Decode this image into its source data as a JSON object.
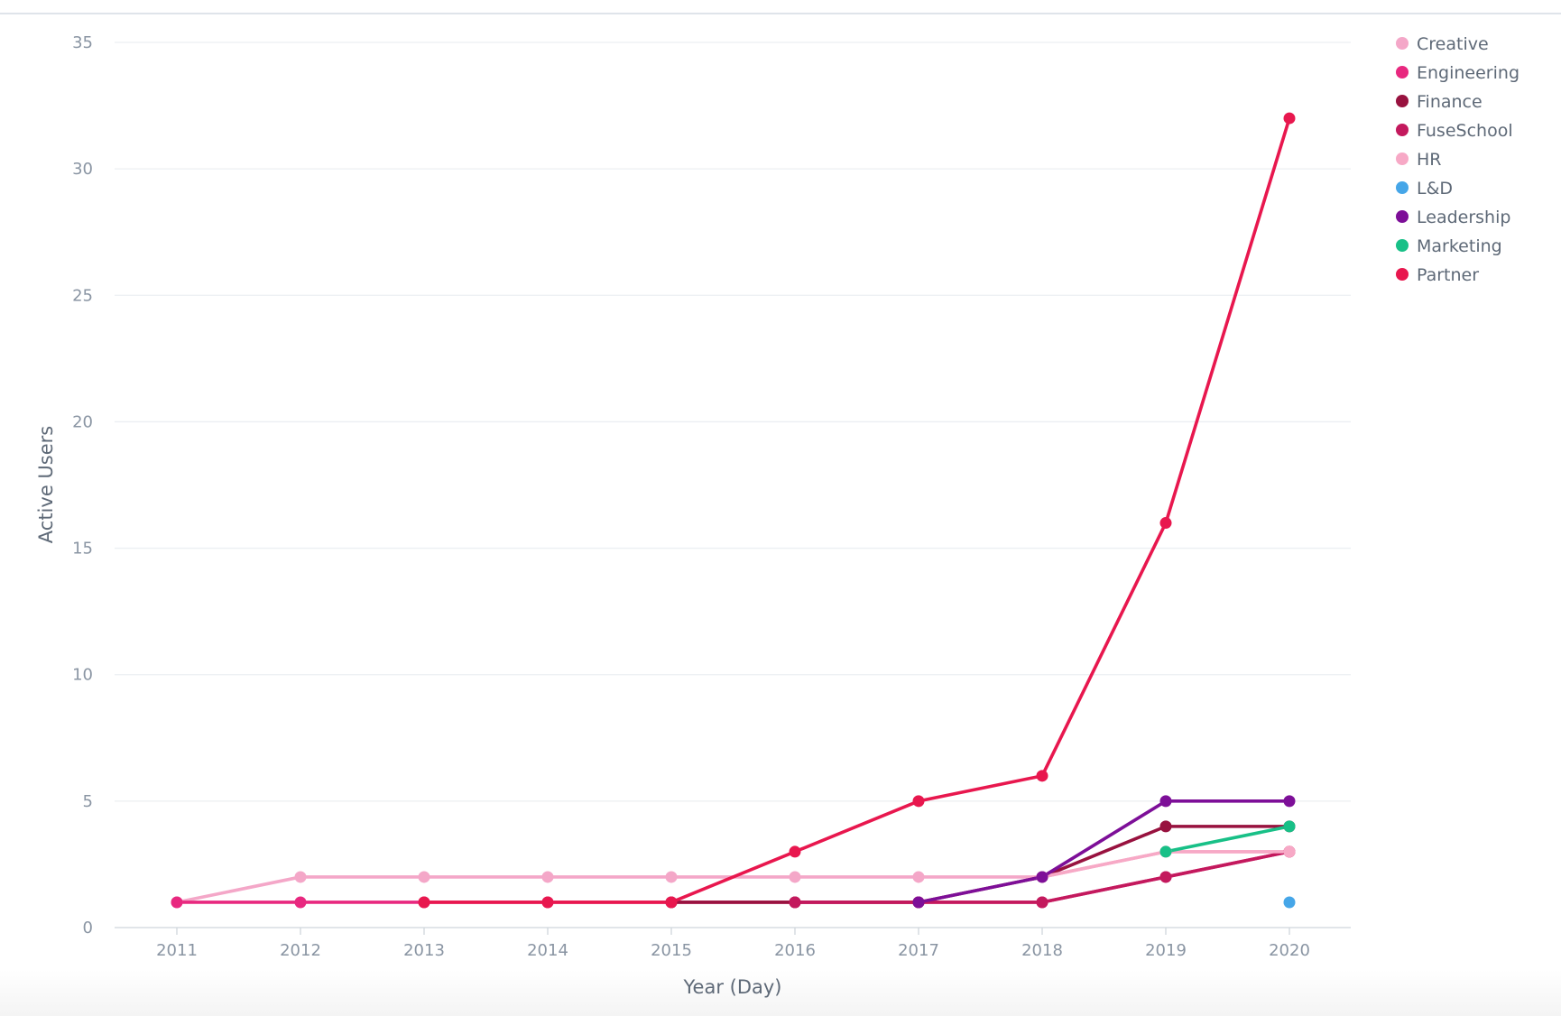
{
  "chart_data": {
    "type": "line",
    "xlabel": "Year (Day)",
    "ylabel": "Active Users",
    "ylim": [
      0,
      35
    ],
    "yticks": [
      0,
      5,
      10,
      15,
      20,
      25,
      30,
      35
    ],
    "categories": [
      "2011",
      "2012",
      "2013",
      "2014",
      "2015",
      "2016",
      "2017",
      "2018",
      "2019",
      "2020"
    ],
    "legend_position": "top-right",
    "grid": true,
    "series": [
      {
        "name": "Creative",
        "color": "#f4a7c8",
        "values": [
          1,
          2,
          2,
          2,
          2,
          2,
          2,
          2,
          3,
          3
        ]
      },
      {
        "name": "Engineering",
        "color": "#e8287f",
        "values": [
          1,
          1,
          1,
          1,
          1,
          1,
          1,
          1,
          2,
          3
        ]
      },
      {
        "name": "Finance",
        "color": "#98123f",
        "values": [
          null,
          null,
          null,
          null,
          1,
          1,
          1,
          2,
          4,
          4
        ]
      },
      {
        "name": "FuseSchool",
        "color": "#c3195d",
        "values": [
          null,
          null,
          null,
          null,
          null,
          1,
          1,
          1,
          2,
          3
        ]
      },
      {
        "name": "HR",
        "color": "#f7a9c6",
        "values": [
          null,
          null,
          null,
          null,
          null,
          null,
          null,
          2,
          3,
          3
        ]
      },
      {
        "name": "L&D",
        "color": "#46a6e8",
        "values": [
          null,
          null,
          null,
          null,
          null,
          null,
          null,
          null,
          null,
          1
        ]
      },
      {
        "name": "Leadership",
        "color": "#7d0f98",
        "values": [
          null,
          null,
          null,
          null,
          null,
          null,
          1,
          2,
          5,
          5
        ]
      },
      {
        "name": "Marketing",
        "color": "#18c087",
        "values": [
          null,
          null,
          null,
          null,
          null,
          null,
          null,
          null,
          3,
          4
        ]
      },
      {
        "name": "Partner",
        "color": "#e8174e",
        "values": [
          null,
          null,
          1,
          1,
          1,
          3,
          5,
          6,
          16,
          32
        ]
      }
    ]
  }
}
